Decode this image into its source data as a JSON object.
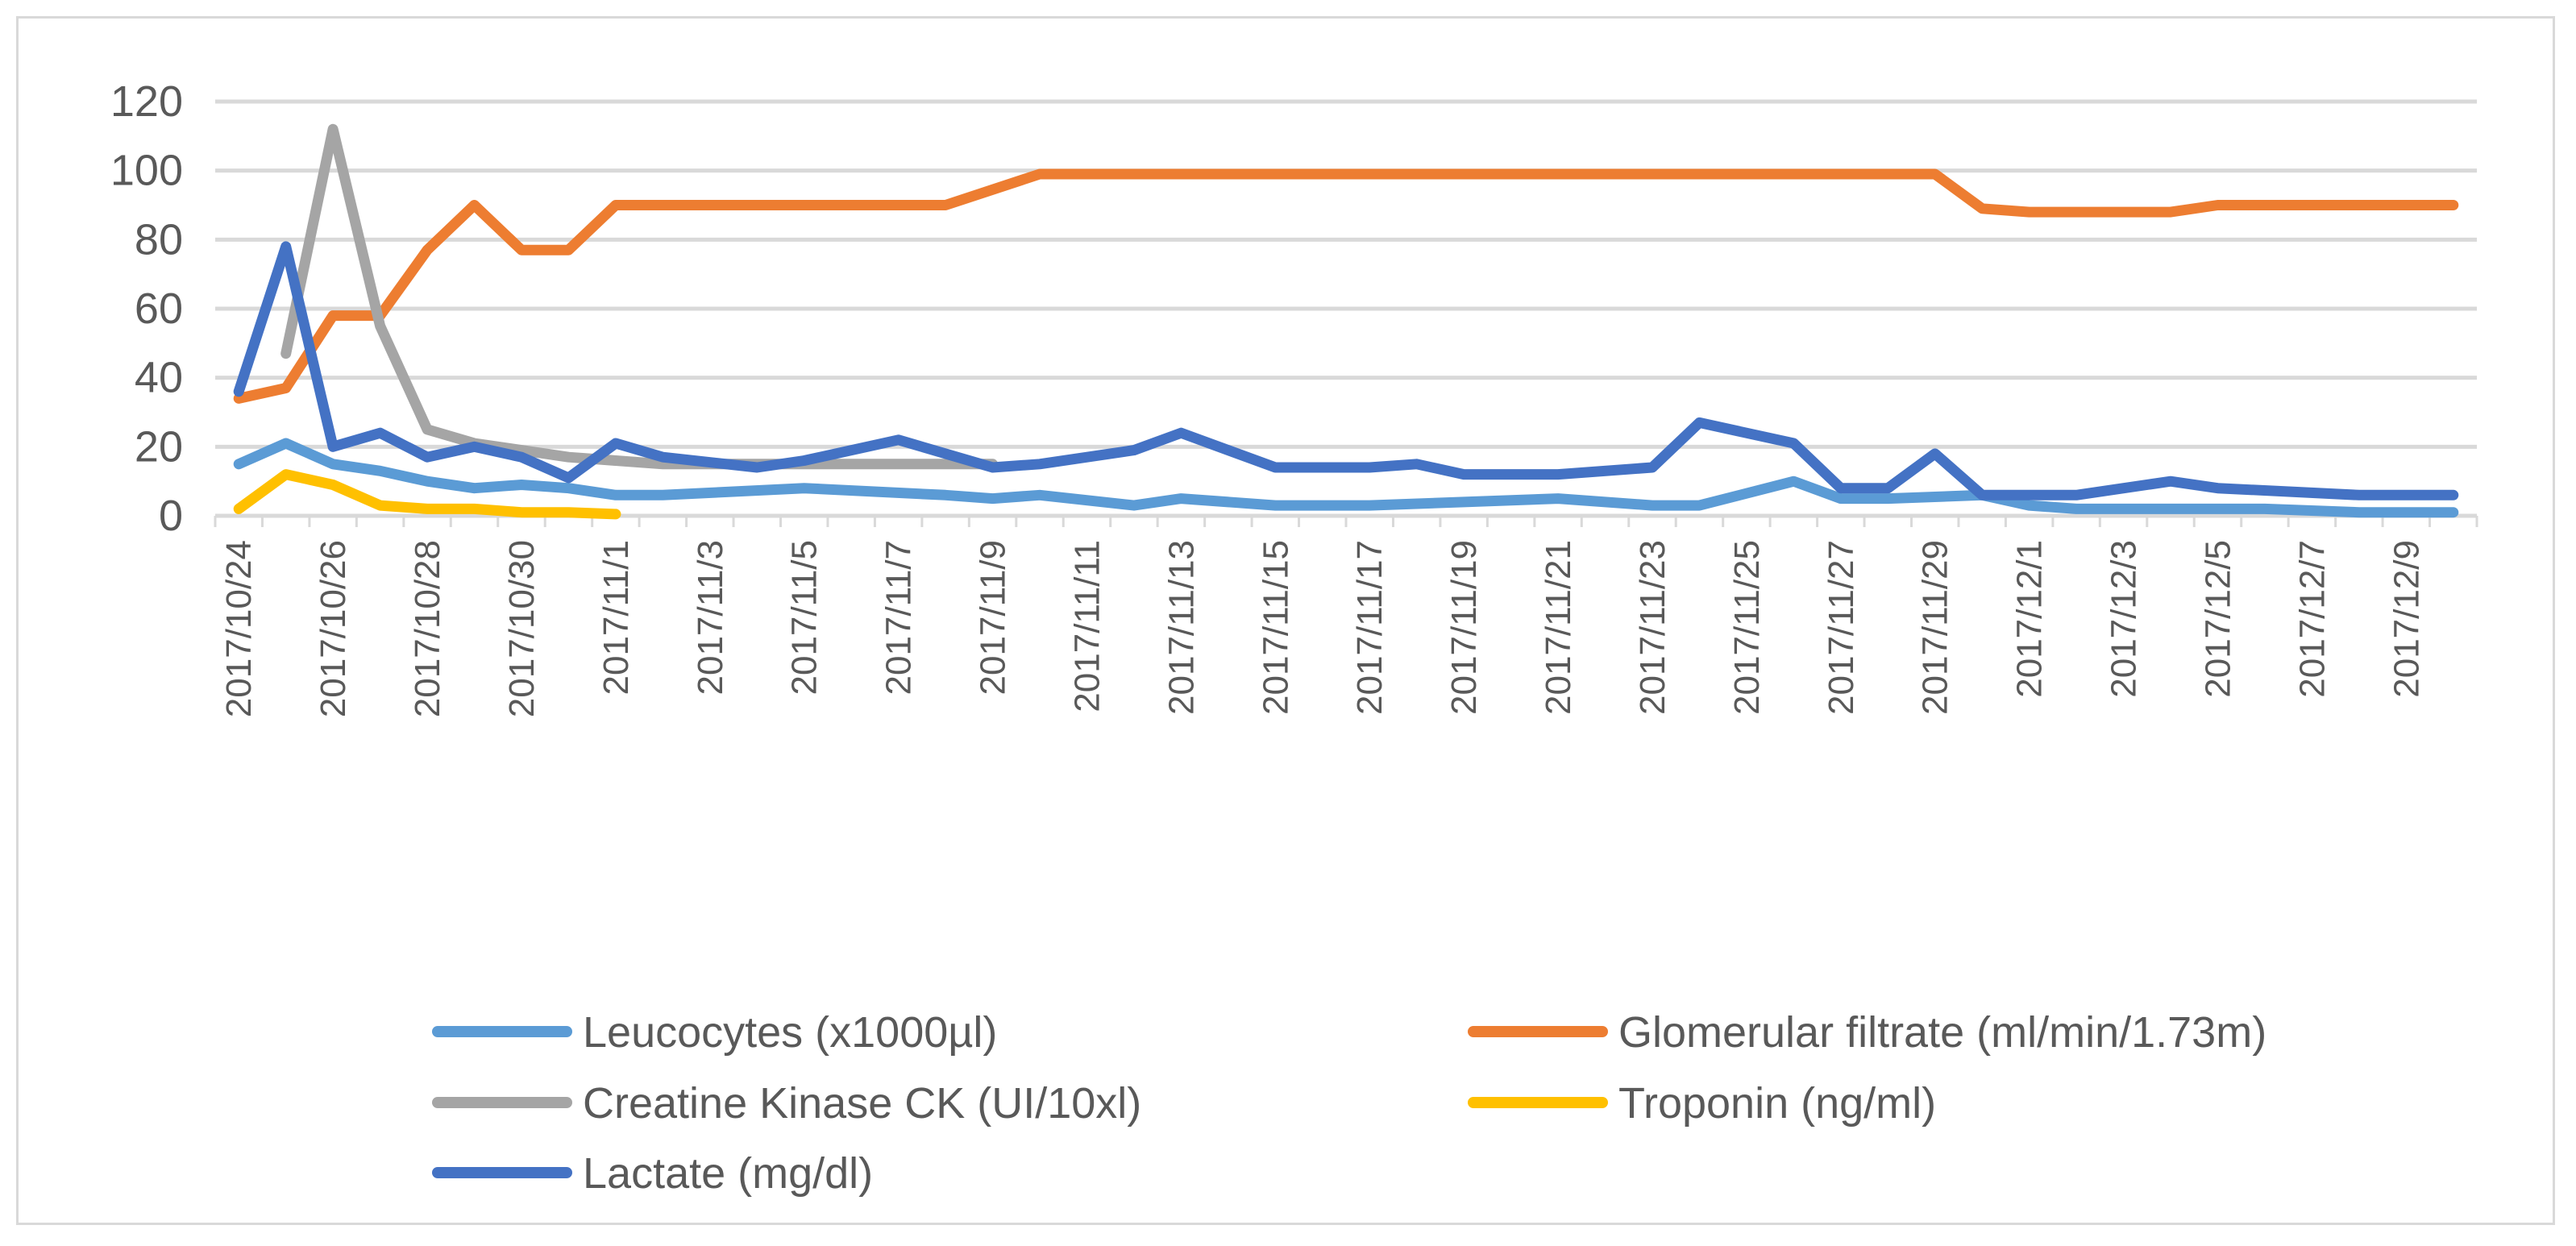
{
  "chart_data": {
    "type": "line",
    "title": "",
    "xlabel": "",
    "ylabel": "",
    "ylim": [
      0,
      120
    ],
    "yticks": [
      0,
      20,
      40,
      60,
      80,
      100,
      120
    ],
    "grid": true,
    "legend_position": "bottom",
    "x_tick_labels": [
      "2017/10/24",
      "2017/10/26",
      "2017/10/28",
      "2017/10/30",
      "2017/11/1",
      "2017/11/3",
      "2017/11/5",
      "2017/11/7",
      "2017/11/9",
      "2017/11/11",
      "2017/11/13",
      "2017/11/15",
      "2017/11/17",
      "2017/11/19",
      "2017/11/21",
      "2017/11/23",
      "2017/11/25",
      "2017/11/27",
      "2017/11/29",
      "2017/12/1",
      "2017/12/3",
      "2017/12/5",
      "2017/12/7",
      "2017/12/9"
    ],
    "series": [
      {
        "name": "Leucocytes (x1000µl)",
        "color": "#5b9bd5",
        "points": [
          [
            "2017/10/24",
            15
          ],
          [
            "2017/10/25",
            21
          ],
          [
            "2017/10/26",
            15
          ],
          [
            "2017/10/27",
            13
          ],
          [
            "2017/10/28",
            10
          ],
          [
            "2017/10/29",
            8
          ],
          [
            "2017/10/30",
            9
          ],
          [
            "2017/10/31",
            8
          ],
          [
            "2017/11/1",
            6
          ],
          [
            "2017/11/2",
            6
          ],
          [
            "2017/11/5",
            8
          ],
          [
            "2017/11/8",
            6
          ],
          [
            "2017/11/9",
            5
          ],
          [
            "2017/11/10",
            6
          ],
          [
            "2017/11/12",
            3
          ],
          [
            "2017/11/13",
            5
          ],
          [
            "2017/11/15",
            3
          ],
          [
            "2017/11/17",
            3
          ],
          [
            "2017/11/19",
            4
          ],
          [
            "2017/11/21",
            5
          ],
          [
            "2017/11/23",
            3
          ],
          [
            "2017/11/24",
            3
          ],
          [
            "2017/11/26",
            10
          ],
          [
            "2017/11/27",
            5
          ],
          [
            "2017/11/28",
            5
          ],
          [
            "2017/11/30",
            6
          ],
          [
            "2017/12/1",
            3
          ],
          [
            "2017/12/2",
            2
          ],
          [
            "2017/12/4",
            2
          ],
          [
            "2017/12/6",
            2
          ],
          [
            "2017/12/8",
            1
          ],
          [
            "2017/12/10",
            1
          ]
        ]
      },
      {
        "name": "Glomerular filtrate (ml/min/1.73m)",
        "color": "#ed7d31",
        "points": [
          [
            "2017/10/24",
            34
          ],
          [
            "2017/10/25",
            37
          ],
          [
            "2017/10/26",
            58
          ],
          [
            "2017/10/27",
            58
          ],
          [
            "2017/10/28",
            77
          ],
          [
            "2017/10/29",
            90
          ],
          [
            "2017/10/30",
            77
          ],
          [
            "2017/10/31",
            77
          ],
          [
            "2017/11/1",
            90
          ],
          [
            "2017/11/8",
            90
          ],
          [
            "2017/11/10",
            99
          ],
          [
            "2017/11/29",
            99
          ],
          [
            "2017/11/30",
            89
          ],
          [
            "2017/12/1",
            88
          ],
          [
            "2017/12/4",
            88
          ],
          [
            "2017/12/5",
            90
          ],
          [
            "2017/12/10",
            90
          ]
        ]
      },
      {
        "name": "Creatine Kinase CK (UI/10xl)",
        "color": "#a5a5a5",
        "points": [
          [
            "2017/10/25",
            47
          ],
          [
            "2017/10/26",
            112
          ],
          [
            "2017/10/27",
            55
          ],
          [
            "2017/10/28",
            25
          ],
          [
            "2017/10/29",
            21
          ],
          [
            "2017/10/30",
            19
          ],
          [
            "2017/10/31",
            17
          ],
          [
            "2017/11/1",
            16
          ],
          [
            "2017/11/2",
            15
          ],
          [
            "2017/11/5",
            15
          ],
          [
            "2017/11/7",
            15
          ],
          [
            "2017/11/9",
            15
          ]
        ]
      },
      {
        "name": "Troponin (ng/ml)",
        "color": "#ffc000",
        "points": [
          [
            "2017/10/24",
            2
          ],
          [
            "2017/10/25",
            12
          ],
          [
            "2017/10/26",
            9
          ],
          [
            "2017/10/27",
            3
          ],
          [
            "2017/10/28",
            2
          ],
          [
            "2017/10/29",
            2
          ],
          [
            "2017/10/30",
            1
          ],
          [
            "2017/10/31",
            1
          ],
          [
            "2017/11/1",
            0.5
          ]
        ]
      },
      {
        "name": "Lactate (mg/dl)",
        "color": "#4472c4",
        "points": [
          [
            "2017/10/24",
            36
          ],
          [
            "2017/10/25",
            78
          ],
          [
            "2017/10/26",
            20
          ],
          [
            "2017/10/27",
            24
          ],
          [
            "2017/10/28",
            17
          ],
          [
            "2017/10/29",
            20
          ],
          [
            "2017/10/30",
            17
          ],
          [
            "2017/10/31",
            11
          ],
          [
            "2017/11/1",
            21
          ],
          [
            "2017/11/2",
            17
          ],
          [
            "2017/11/4",
            14
          ],
          [
            "2017/11/5",
            16
          ],
          [
            "2017/11/7",
            22
          ],
          [
            "2017/11/9",
            14
          ],
          [
            "2017/11/10",
            15
          ],
          [
            "2017/11/12",
            19
          ],
          [
            "2017/11/13",
            24
          ],
          [
            "2017/11/15",
            14
          ],
          [
            "2017/11/17",
            14
          ],
          [
            "2017/11/18",
            15
          ],
          [
            "2017/11/19",
            12
          ],
          [
            "2017/11/21",
            12
          ],
          [
            "2017/11/23",
            14
          ],
          [
            "2017/11/24",
            27
          ],
          [
            "2017/11/26",
            21
          ],
          [
            "2017/11/27",
            8
          ],
          [
            "2017/11/28",
            8
          ],
          [
            "2017/11/29",
            18
          ],
          [
            "2017/11/30",
            6
          ],
          [
            "2017/12/2",
            6
          ],
          [
            "2017/12/4",
            10
          ],
          [
            "2017/12/5",
            8
          ],
          [
            "2017/12/8",
            6
          ],
          [
            "2017/12/10",
            6
          ]
        ]
      }
    ]
  },
  "legend": {
    "items": [
      {
        "label": "Leucocytes (x1000µl)",
        "color": "#5b9bd5"
      },
      {
        "label": "Glomerular filtrate (ml/min/1.73m)",
        "color": "#ed7d31"
      },
      {
        "label": "Creatine Kinase CK (UI/10xl)",
        "color": "#a5a5a5"
      },
      {
        "label": "Troponin (ng/ml)",
        "color": "#ffc000"
      },
      {
        "label": "Lactate (mg/dl)",
        "color": "#4472c4"
      }
    ]
  }
}
